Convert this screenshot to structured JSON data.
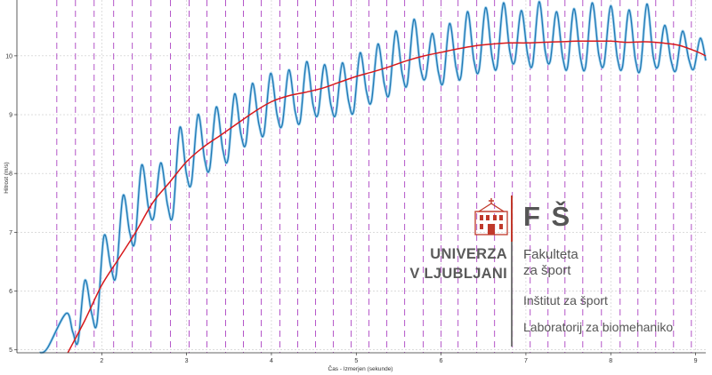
{
  "chart_data": {
    "type": "line",
    "xlabel": "Čas - Izmerjen (sekunde)",
    "ylabel": "Hitrost (m/s)",
    "xlim": [
      1.0,
      9.12
    ],
    "ylim": [
      4.95,
      10.95
    ],
    "x_ticks": [
      2,
      3,
      4,
      5,
      6,
      7,
      8,
      9
    ],
    "y_ticks": [
      5,
      6,
      7,
      8,
      9,
      10
    ],
    "grid": true,
    "step_markers": [
      1.47,
      1.69,
      1.91,
      2.14,
      2.36,
      2.58,
      2.81,
      3.03,
      3.24,
      3.46,
      3.67,
      3.88,
      4.1,
      4.31,
      4.52,
      4.73,
      4.94,
      5.15,
      5.36,
      5.57,
      5.79,
      6.0,
      6.2,
      6.42,
      6.63,
      6.84,
      7.05,
      7.26,
      7.46,
      7.67,
      7.89,
      8.11,
      8.32,
      8.53,
      8.74,
      8.95
    ],
    "step_marker_color": "#b455c8",
    "series": [
      {
        "color": "#1f78b4",
        "peaks": [
          5.62,
          6.18,
          6.93,
          7.62,
          8.14,
          8.18,
          8.78,
          9.0,
          9.13,
          9.35,
          9.53,
          9.7,
          9.76,
          9.9,
          9.85,
          9.88,
          10.05,
          10.2,
          10.42,
          10.62,
          10.38,
          10.55,
          10.75,
          10.82,
          10.9,
          10.77,
          10.92,
          10.75,
          10.8,
          10.9,
          10.85,
          10.78,
          10.88,
          10.52,
          10.42,
          10.3
        ],
        "troughs": [
          5.18,
          5.5,
          6.3,
          6.88,
          7.3,
          7.34,
          7.88,
          8.12,
          8.28,
          8.55,
          8.72,
          8.87,
          8.93,
          9.05,
          9.05,
          9.1,
          9.27,
          9.4,
          9.57,
          9.67,
          9.6,
          9.69,
          9.8,
          9.86,
          9.95,
          9.9,
          9.95,
          9.85,
          9.85,
          9.9,
          9.85,
          9.82,
          9.87,
          9.8,
          9.82,
          9.92
        ]
      },
      {
        "color": "#d7191c",
        "x": [
          1.6,
          1.8,
          2.0,
          2.2,
          2.4,
          2.6,
          2.8,
          3.0,
          3.2,
          3.4,
          3.6,
          3.8,
          4.0,
          4.2,
          4.4,
          4.6,
          4.8,
          5.0,
          5.2,
          5.4,
          5.6,
          5.8,
          6.0,
          6.2,
          6.4,
          6.6,
          6.8,
          7.0,
          7.2,
          7.4,
          7.6,
          7.8,
          8.0,
          8.2,
          8.4,
          8.6,
          8.8,
          9.0,
          9.12
        ],
        "y": [
          4.95,
          5.5,
          6.1,
          6.55,
          7.0,
          7.5,
          7.85,
          8.2,
          8.45,
          8.65,
          8.85,
          9.05,
          9.22,
          9.32,
          9.38,
          9.45,
          9.55,
          9.65,
          9.73,
          9.82,
          9.92,
          10.0,
          10.06,
          10.12,
          10.17,
          10.2,
          10.22,
          10.22,
          10.23,
          10.24,
          10.25,
          10.25,
          10.25,
          10.23,
          10.24,
          10.22,
          10.18,
          10.08,
          10.0
        ]
      }
    ]
  },
  "logo": {
    "uni_line1": "UNIVERZA",
    "uni_line2": "V LJUBLJANI",
    "faculty_short": "F Š",
    "faculty_line1": "Fakulteta",
    "faculty_line2": "za šport",
    "institute": "Inštitut za šport",
    "lab": "Laboratorij za biomehaniko",
    "brand_red": "#c0392b",
    "text_gray": "#555555"
  }
}
